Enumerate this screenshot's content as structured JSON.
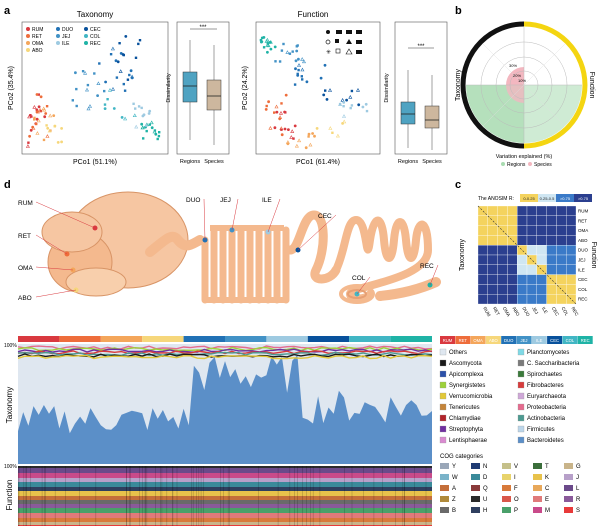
{
  "panel_letters": {
    "a": "a",
    "b": "b",
    "c": "c",
    "d": "d"
  },
  "panel_a": {
    "taxonomy_title": "Taxonomy",
    "function_title": "Function",
    "tax_xlabel": "PCo1 (51.1%)",
    "tax_ylabel": "PCo2 (35.4%)",
    "fun_xlabel": "PCo1 (61.4%)",
    "fun_ylabel": "PCo2 (24.2%)",
    "box_ylabel": "Dissimilarity",
    "box_categories": [
      "Regions",
      "Species"
    ],
    "significance": "***",
    "legend_col1": [
      {
        "label": "RUM",
        "color": "#d9393f"
      },
      {
        "label": "RET",
        "color": "#ee6d3b"
      },
      {
        "label": "OMA",
        "color": "#f4a65b"
      },
      {
        "label": "ABO",
        "color": "#f6d77b"
      }
    ],
    "legend_col2": [
      {
        "label": "DUO",
        "color": "#2171b5"
      },
      {
        "label": "JEJ",
        "color": "#4292c6"
      },
      {
        "label": "ILE",
        "color": "#9ecae1"
      }
    ],
    "legend_col3": [
      {
        "label": "CEC",
        "color": "#08519c"
      },
      {
        "label": "COL",
        "color": "#41b6c4"
      },
      {
        "label": "REC",
        "color": "#1fb3a6"
      }
    ],
    "colors": {
      "regions": "#4fa3c2",
      "species": "#cdb79e"
    }
  },
  "panel_b": {
    "left_label": "Taxonomy",
    "right_label": "Function",
    "caption": "Variation explained (%)",
    "legend": [
      {
        "label": "Regions",
        "color": "#a8dbb0"
      },
      {
        "label": "Species",
        "color": "#f3b7c0"
      }
    ],
    "rings": [
      "30%",
      "20%",
      "10%"
    ],
    "colors": {
      "taxonomy": "#111111",
      "function": "#f4d511"
    }
  },
  "panel_c": {
    "header_prefix": "The ANOSIM R:",
    "scale": [
      {
        "label": "0-0.25",
        "color": "#f4d35e"
      },
      {
        "label": "0.25-0.5",
        "color": "#cfe6f2"
      },
      {
        "label": ">0.75",
        "color": "#3a7ac8"
      },
      {
        "label": ">0.75",
        "color": "#2b3f8f"
      }
    ],
    "labels": [
      "RUM",
      "RET",
      "OMA",
      "ABO",
      "DUO",
      "JEJ",
      "ILE",
      "CEC",
      "COL",
      "REC"
    ],
    "left_title": "Taxonomy",
    "right_title": "Function"
  },
  "panel_d": {
    "organs": [
      "RUM",
      "RET",
      "OMA",
      "ABO",
      "DUO",
      "JEJ",
      "ILE",
      "CEC",
      "COL",
      "REC"
    ],
    "organ_colors": [
      "#d9393f",
      "#ee6d3b",
      "#f4a65b",
      "#f6d77b",
      "#2171b5",
      "#4292c6",
      "#9ecae1",
      "#08519c",
      "#41b6c4",
      "#1fb3a6"
    ],
    "pct_label": "100%",
    "tax_title": "Taxonomy",
    "fun_title": "Function",
    "tax_legend": [
      {
        "label": "Others",
        "color": "#dfe7f0"
      },
      {
        "label": "Ascomycota",
        "color": "#1a1a1a"
      },
      {
        "label": "Apicomplexa",
        "color": "#2b50a8"
      },
      {
        "label": "Synergistetes",
        "color": "#9dd13a"
      },
      {
        "label": "Verrucomicrobia",
        "color": "#e2c838"
      },
      {
        "label": "Tenericutes",
        "color": "#c5853a"
      },
      {
        "label": "Chlamydiae",
        "color": "#b1232a"
      },
      {
        "label": "Streptophyta",
        "color": "#6f2fa0"
      },
      {
        "label": "Lentisphaerae",
        "color": "#d98ad0"
      },
      {
        "label": "Planctomycetes",
        "color": "#7fd9e6"
      },
      {
        "label": "C. Saccharibacteria",
        "color": "#7a7a7a"
      },
      {
        "label": "Spirochaetes",
        "color": "#3b7a3b"
      },
      {
        "label": "Fibrobacteres",
        "color": "#d73c3c"
      },
      {
        "label": "Euryarchaeota",
        "color": "#cfa8d8"
      },
      {
        "label": "Proteobacteria",
        "color": "#e56b8e"
      },
      {
        "label": "Actinobacteria",
        "color": "#4d9a91"
      },
      {
        "label": "Firmicutes",
        "color": "#bcd6ea"
      },
      {
        "label": "Bacteroidetes",
        "color": "#5b8fc8"
      }
    ],
    "cog_title": "COG categories",
    "cog_legend": [
      {
        "label": "Y",
        "color": "#9aa7b8"
      },
      {
        "label": "N",
        "color": "#1f3b73"
      },
      {
        "label": "V",
        "color": "#c5c08a"
      },
      {
        "label": "T",
        "color": "#3b6e3b"
      },
      {
        "label": "G",
        "color": "#c9b48a"
      },
      {
        "label": "W",
        "color": "#7ab3c9"
      },
      {
        "label": "D",
        "color": "#3a8a9a"
      },
      {
        "label": "I",
        "color": "#e8d36b"
      },
      {
        "label": "K",
        "color": "#e8c24b"
      },
      {
        "label": "J",
        "color": "#b7a0c9"
      },
      {
        "label": "A",
        "color": "#c46e3a"
      },
      {
        "label": "Q",
        "color": "#8a3a3a"
      },
      {
        "label": "F",
        "color": "#d87a3a"
      },
      {
        "label": "C",
        "color": "#e8a85a"
      },
      {
        "label": "L",
        "color": "#6b4a8a"
      },
      {
        "label": "Z",
        "color": "#b08a3a"
      },
      {
        "label": "U",
        "color": "#2a2a2a"
      },
      {
        "label": "O",
        "color": "#d9574a"
      },
      {
        "label": "E",
        "color": "#e07a7a"
      },
      {
        "label": "R",
        "color": "#8a5a9a"
      },
      {
        "label": "B",
        "color": "#6a6a6a"
      },
      {
        "label": "H",
        "color": "#2f3f5f"
      },
      {
        "label": "P",
        "color": "#4aa06a"
      },
      {
        "label": "M",
        "color": "#c94a8a"
      },
      {
        "label": "S",
        "color": "#e83a3a"
      }
    ]
  }
}
